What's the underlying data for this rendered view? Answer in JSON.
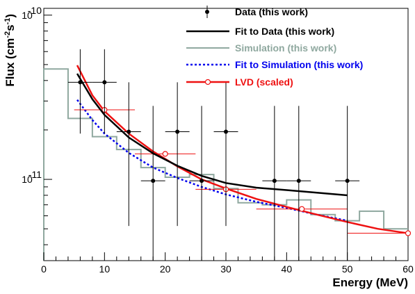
{
  "chart_data": {
    "type": "line",
    "xlabel": "Energy (MeV)",
    "ylabel_parts": [
      "Flux (cm",
      "-2",
      "s",
      "-1",
      ")"
    ],
    "xlim": [
      0,
      60
    ],
    "ylim": [
      3.2e-12,
      1.1e-10
    ],
    "yscale": "log",
    "x_ticks": [
      0,
      10,
      20,
      30,
      40,
      50,
      60
    ],
    "y_ticks": [
      {
        "value": 1e-11,
        "base": "10",
        "exp": "-11"
      },
      {
        "value": 1e-10,
        "base": "10",
        "exp": "-10"
      }
    ],
    "legend_position": "top-right",
    "series": [
      {
        "name": "Data (this work)",
        "kind": "points_with_error_bars",
        "color": "#000000",
        "points": [
          {
            "x": 6,
            "y": 3.9e-11,
            "xerr": 2,
            "ylo": 1.9e-11,
            "yhi": 6.2e-11
          },
          {
            "x": 10,
            "y": 3.9e-11,
            "xerr": 2,
            "ylo": 1.9e-11,
            "yhi": 6.2e-11
          },
          {
            "x": 14,
            "y": 1.95e-11,
            "xerr": 2,
            "ylo": 5.2e-12,
            "yhi": 3.9e-11
          },
          {
            "x": 18,
            "y": 9.8e-12,
            "xerr": 2,
            "ylo": 3.2e-12,
            "yhi": 2.8e-11
          },
          {
            "x": 22,
            "y": 1.95e-11,
            "xerr": 2,
            "ylo": 5.2e-12,
            "yhi": 3.9e-11
          },
          {
            "x": 26,
            "y": 9.8e-12,
            "xerr": 2,
            "ylo": 3.2e-12,
            "yhi": 2.8e-11
          },
          {
            "x": 30,
            "y": 1.95e-11,
            "xerr": 2,
            "ylo": 5.2e-12,
            "yhi": 3.9e-11
          },
          {
            "x": 38,
            "y": 9.8e-12,
            "xerr": 2,
            "ylo": 3.2e-12,
            "yhi": 2.8e-11
          },
          {
            "x": 42,
            "y": 9.8e-12,
            "xerr": 2,
            "ylo": 3.2e-12,
            "yhi": 2.8e-11
          },
          {
            "x": 50,
            "y": 9.8e-12,
            "xerr": 2,
            "ylo": 3.2e-12,
            "yhi": 2.8e-11
          }
        ]
      },
      {
        "name": "Fit to Data (this work)",
        "kind": "line",
        "color": "#000000",
        "x": [
          5.5,
          8,
          10,
          14,
          18,
          22,
          26,
          30,
          35,
          40,
          45,
          50
        ],
        "y": [
          4.4e-11,
          3.08e-11,
          2.47e-11,
          1.8e-11,
          1.44e-11,
          1.21e-11,
          1.05e-11,
          9.5e-12,
          8.9e-12,
          8.6e-12,
          8.3e-12,
          8e-12
        ]
      },
      {
        "name": "Simulation (this work)",
        "kind": "step",
        "color": "#8fa89f",
        "edges": [
          0,
          4,
          8,
          12,
          16,
          20,
          24,
          28,
          32,
          36,
          40,
          44,
          48,
          52,
          56,
          60
        ],
        "values": [
          4.7e-11,
          2.35e-11,
          1.82e-11,
          1.52e-11,
          1.18e-11,
          1.03e-11,
          1.07e-11,
          8.8e-12,
          7.2e-12,
          7e-12,
          7.5e-12,
          6.1e-12,
          5.6e-12,
          6.4e-12,
          5e-12
        ]
      },
      {
        "name": "Fit to Simulation (this work)",
        "kind": "dashed_line",
        "color": "#0000ee",
        "x": [
          5.5,
          8,
          10,
          14,
          18,
          22,
          26,
          30,
          35,
          40,
          45,
          50
        ],
        "y": [
          3.05e-11,
          2.3e-11,
          1.9e-11,
          1.45e-11,
          1.18e-11,
          1.02e-11,
          9e-12,
          8.1e-12,
          7.3e-12,
          6.7e-12,
          6.1e-12,
          5.6e-12
        ]
      },
      {
        "name": "LVD (scaled)",
        "kind": "line_with_points",
        "color": "#ee1111",
        "x": [
          5.5,
          8,
          10,
          14,
          18,
          22,
          26,
          30,
          35,
          40,
          45,
          50,
          55,
          60
        ],
        "y": [
          4.95e-11,
          3.25e-11,
          2.6e-11,
          1.9e-11,
          1.48e-11,
          1.2e-11,
          1e-11,
          8.8e-12,
          7.6e-12,
          6.8e-12,
          6.1e-12,
          5.5e-12,
          5e-12,
          4.7e-12
        ],
        "points": [
          {
            "x": 10,
            "y": 2.65e-11,
            "x_lo": 5,
            "x_hi": 15
          },
          {
            "x": 20,
            "y": 1.43e-11,
            "x_lo": 15,
            "x_hi": 25
          },
          {
            "x": 30,
            "y": 8.7e-12,
            "x_lo": 25,
            "x_hi": 35
          },
          {
            "x": 42.5,
            "y": 6.6e-12,
            "x_lo": 35,
            "x_hi": 50
          },
          {
            "x": 60,
            "y": 4.7e-12,
            "x_lo": 50,
            "x_hi": 60
          }
        ]
      }
    ]
  }
}
